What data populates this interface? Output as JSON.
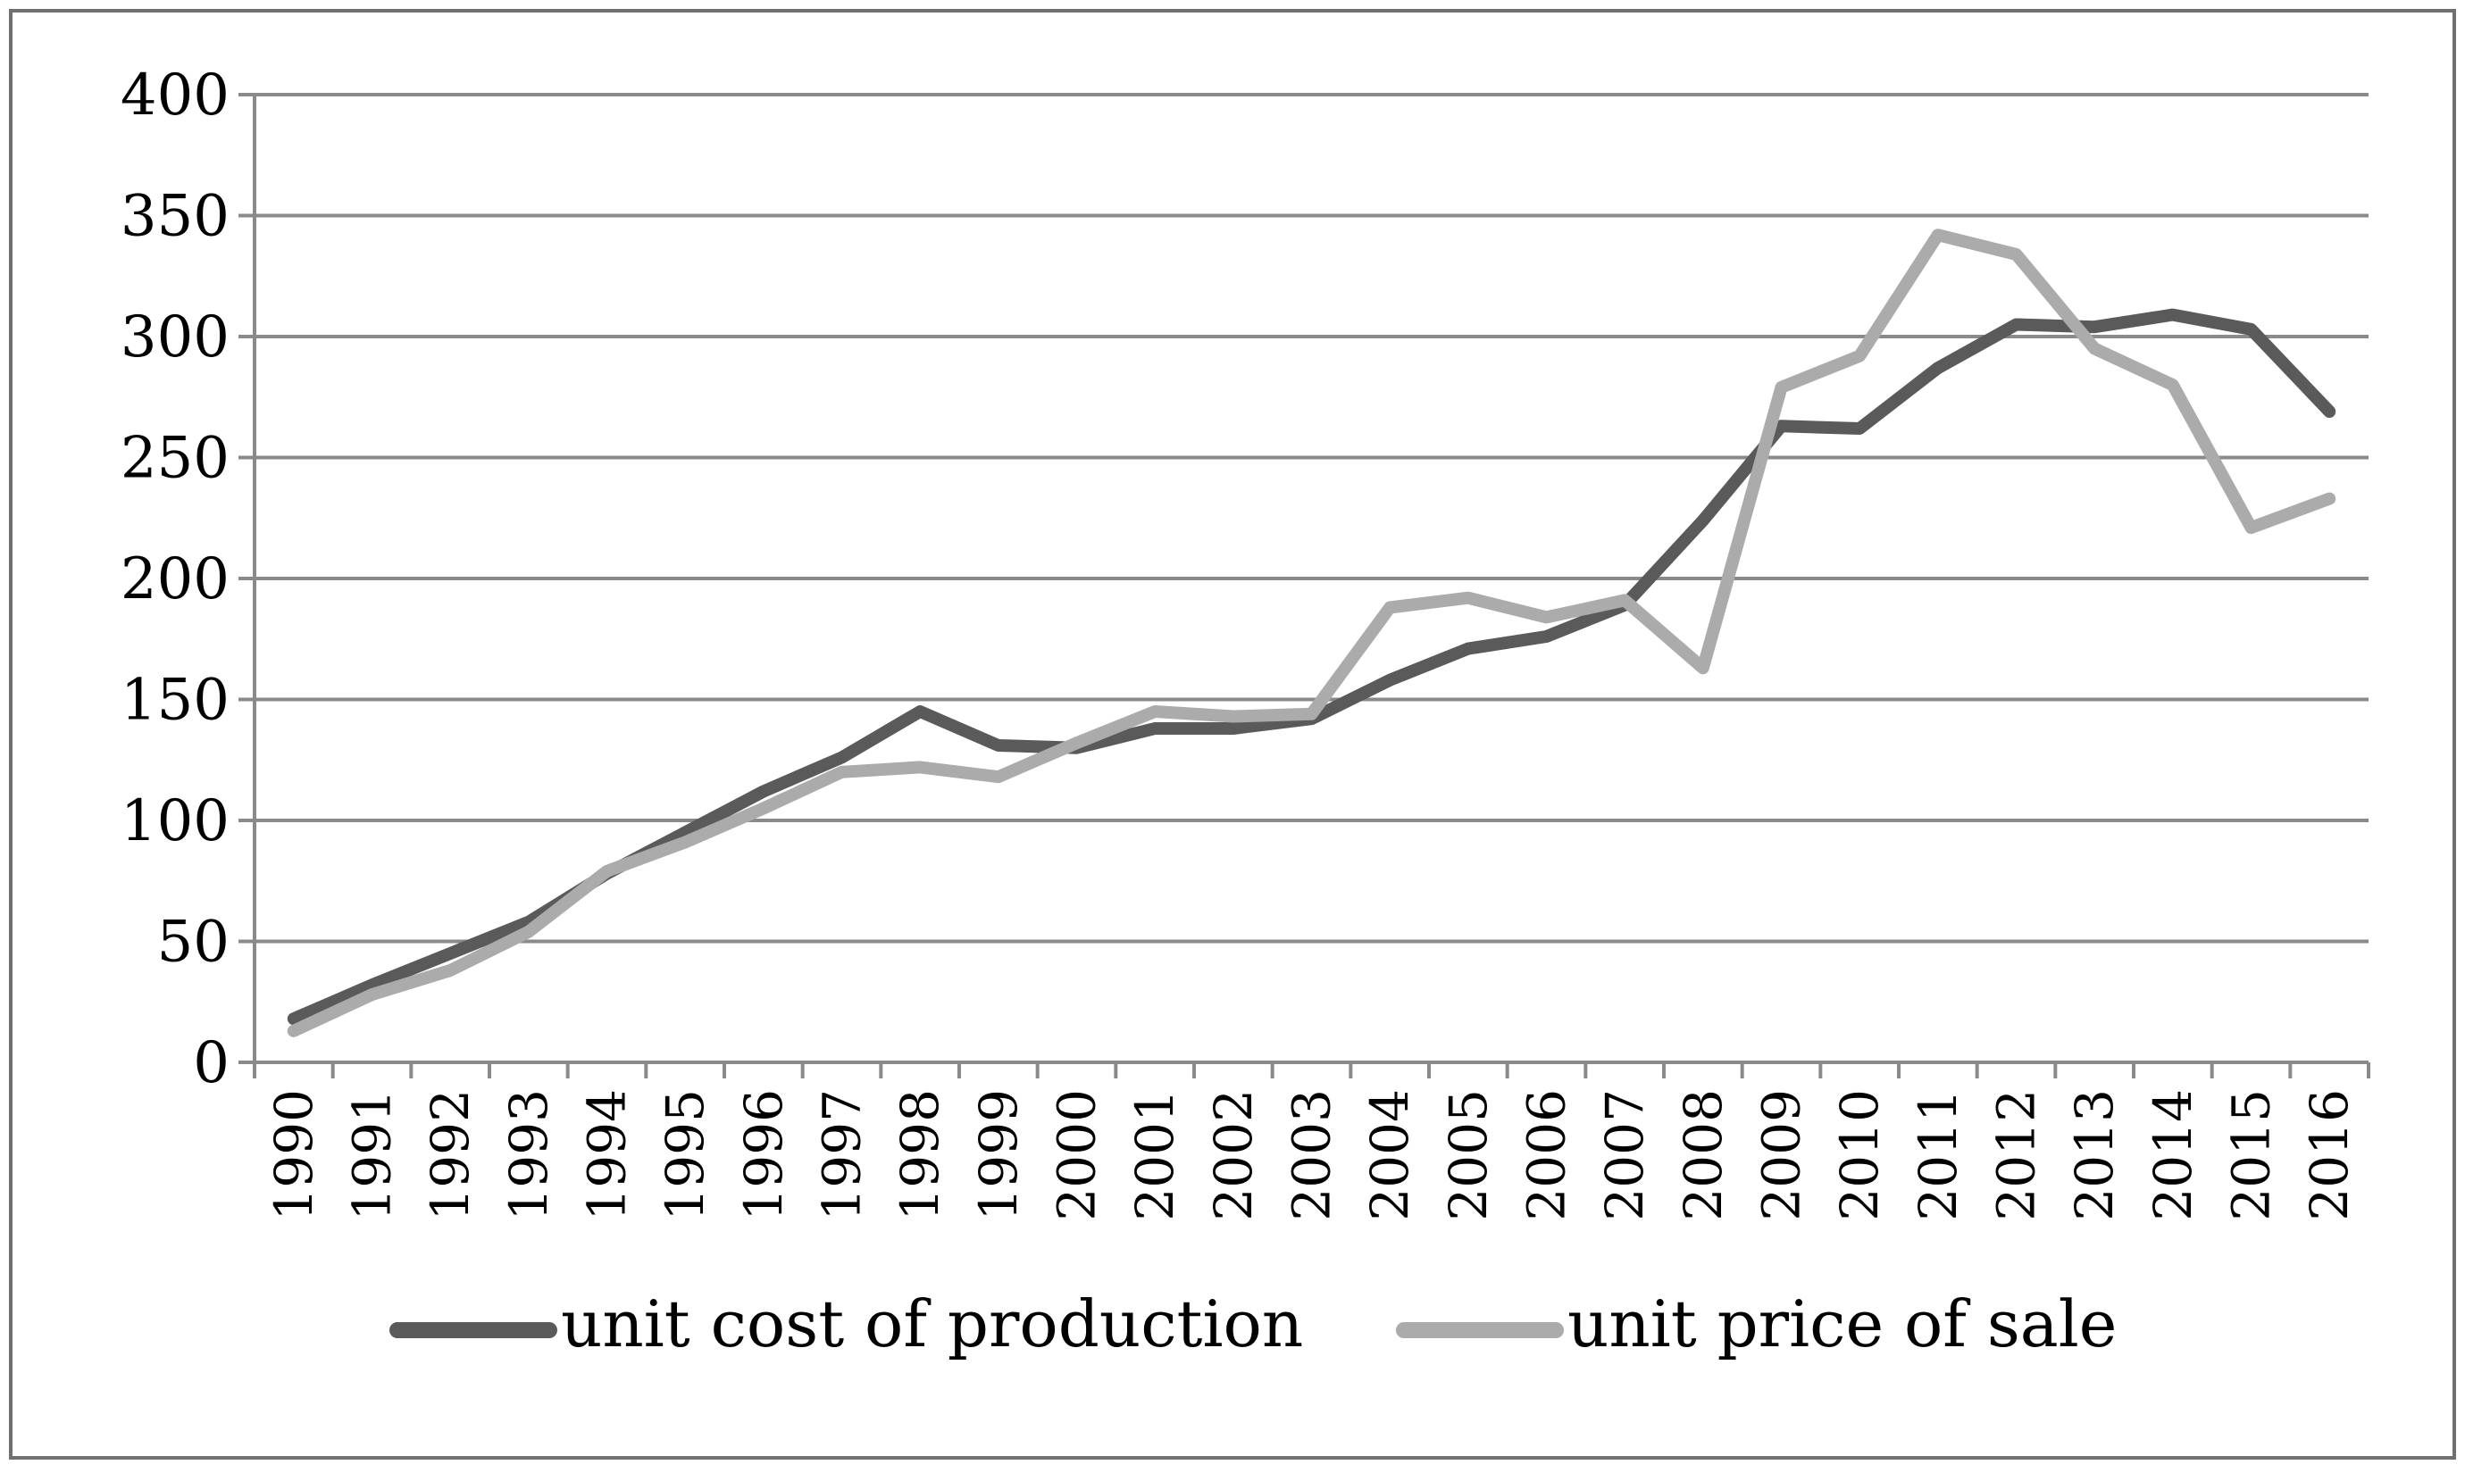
{
  "chart_data": {
    "type": "line",
    "title": "",
    "xlabel": "",
    "ylabel": "",
    "ylim": [
      0,
      400
    ],
    "yticks": [
      0,
      50,
      100,
      150,
      200,
      250,
      300,
      350,
      400
    ],
    "ytick_labels": [
      "0",
      "50",
      "100",
      "150",
      "200",
      "250",
      "300",
      "350",
      "400"
    ],
    "grid": true,
    "legend_position": "bottom",
    "categories": [
      "1990",
      "1991",
      "1992",
      "1993",
      "1994",
      "1995",
      "1996",
      "1997",
      "1998",
      "1999",
      "2000",
      "2001",
      "2002",
      "2003",
      "2004",
      "2005",
      "2006",
      "2007",
      "2008",
      "2009",
      "2010",
      "2011",
      "2012",
      "2013",
      "2014",
      "2015",
      "2016"
    ],
    "series": [
      {
        "name": "unit cost of production",
        "color": "#5a5a5a",
        "values": [
          18,
          32,
          45,
          58,
          78,
          95,
          112,
          126,
          145,
          131,
          130,
          138,
          138,
          142,
          158,
          171,
          176,
          189,
          224,
          263,
          262,
          287,
          305,
          304,
          309,
          303,
          269
        ]
      },
      {
        "name": "unit price of sale",
        "color": "#ababab",
        "values": [
          13,
          28,
          38,
          54,
          79,
          91,
          105,
          120,
          122,
          118,
          132,
          145,
          143,
          144,
          188,
          192,
          184,
          191,
          163,
          279,
          292,
          342,
          334,
          295,
          280,
          221,
          233
        ]
      }
    ]
  }
}
